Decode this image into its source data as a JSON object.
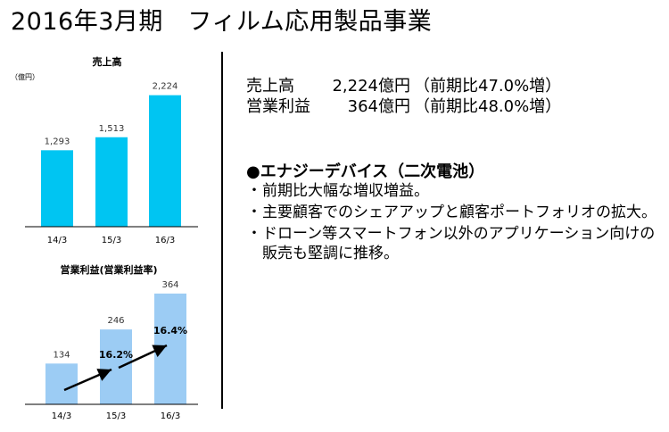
{
  "page_title": "2016年3月期　フィルム応用製品事業",
  "summary": [
    {
      "label": "売上高",
      "amount": "2,224億円",
      "change": "（前期比47.0%増）"
    },
    {
      "label": "営業利益",
      "amount": "364億円",
      "change": "（前期比48.0%増）"
    }
  ],
  "section_heading": "●エナジーデバイス（二次電池）",
  "bullets": [
    {
      "mark": "・",
      "text": "前期比大幅な増収増益。"
    },
    {
      "mark": "・",
      "text": "主要顧客でのシェアアップと顧客ポートフォリオの拡大。"
    },
    {
      "mark": "・",
      "text": "ドローン等スマートフォン以外のアプリケーション向けの販売も堅調に推移。"
    }
  ],
  "colors": {
    "sales_bar": "#00c5f2",
    "profit_bar": "#9cccf4",
    "axis": "#000000",
    "arrow": "#000000"
  },
  "chart_data": [
    {
      "type": "bar",
      "title": "売上高",
      "unit_label": "（億円）",
      "categories": [
        "14/3",
        "15/3",
        "16/3"
      ],
      "values": [
        1293,
        1513,
        2224
      ],
      "value_labels": [
        "1,293",
        "1,513",
        "2,224"
      ],
      "ylim": [
        0,
        2400
      ],
      "grid": false,
      "color": "#00c5f2"
    },
    {
      "type": "bar",
      "title": "営業利益(営業利益率)",
      "categories": [
        "14/3",
        "15/3",
        "16/3"
      ],
      "values": [
        134,
        246,
        364
      ],
      "value_labels": [
        "134",
        "246",
        "364"
      ],
      "ylim": [
        0,
        390
      ],
      "grid": false,
      "color": "#9cccf4",
      "margin_labels": [
        null,
        "16.2%",
        "16.4%"
      ]
    }
  ]
}
